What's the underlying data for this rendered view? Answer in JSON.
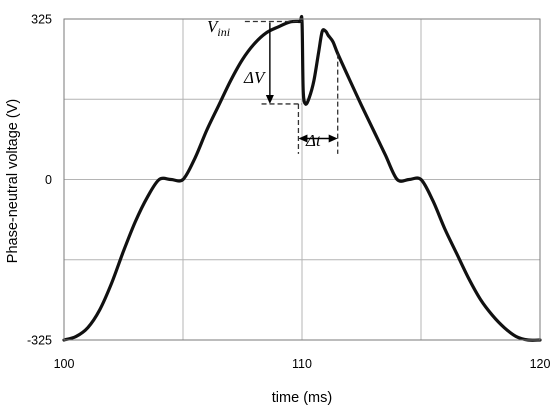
{
  "chart_data": {
    "type": "line",
    "title": "",
    "xlabel": "time (ms)",
    "ylabel": "Phase-neutral voltage (V)",
    "xlim": [
      100,
      120
    ],
    "ylim": [
      -325,
      325
    ],
    "grid": true,
    "x_ticks": [
      100,
      105,
      110,
      115,
      120
    ],
    "x_tick_labels": [
      "100",
      "",
      "110",
      "",
      "120"
    ],
    "y_ticks": [
      325,
      162.5,
      0,
      -162.5,
      -325
    ],
    "y_tick_labels": [
      "325",
      "",
      "0",
      "",
      "-325"
    ],
    "series": [
      {
        "x": [
          100,
          100.5,
          101,
          101.5,
          102,
          102.5,
          103,
          103.5,
          104,
          104.5,
          105,
          105.5,
          106,
          106.5,
          107,
          107.5,
          108,
          108.5,
          109,
          109.5,
          109.9,
          110.0,
          110.05,
          110.15,
          110.3,
          110.5,
          110.7,
          110.85,
          111.0,
          111.1,
          111.3,
          111.5,
          112,
          112.5,
          113,
          113.5,
          114,
          114.5,
          115,
          115.5,
          116,
          116.5,
          117,
          117.5,
          118,
          118.5,
          119,
          119.5,
          120
        ],
        "values": [
          -325,
          -318,
          -300,
          -264,
          -210,
          -145,
          -85,
          -36,
          0,
          0,
          0,
          43,
          100,
          150,
          200,
          243,
          275,
          297,
          309,
          319,
          320,
          320,
          180,
          153,
          165,
          200,
          258,
          300,
          300,
          292,
          279,
          255,
          202,
          150,
          100,
          50,
          0,
          0,
          0,
          -43,
          -100,
          -150,
          -200,
          -243,
          -275,
          -300,
          -318,
          -325,
          -325
        ]
      }
    ],
    "annotations": [
      {
        "text": "V",
        "subscript": "ini"
      },
      {
        "text": "ΔV"
      },
      {
        "text": "Δt"
      }
    ]
  }
}
